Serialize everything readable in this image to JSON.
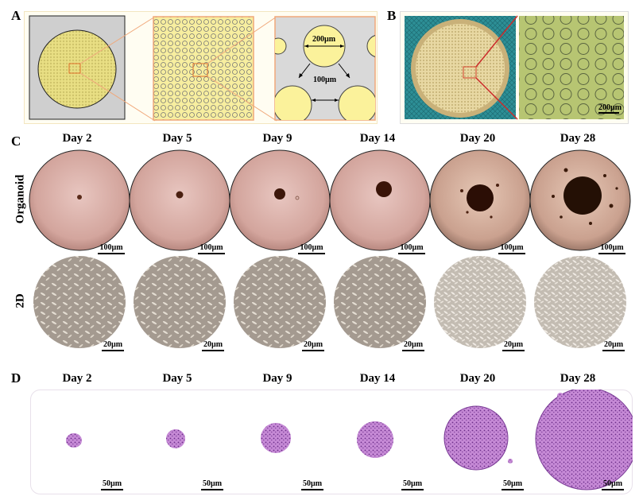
{
  "panels": {
    "a": "A",
    "b": "B",
    "c": "C",
    "d": "D"
  },
  "panel_a": {
    "diameter_label": "200µm",
    "spacing_label": "100µm"
  },
  "panel_b": {
    "scale_label": "200µm"
  },
  "days": [
    "Day 2",
    "Day 5",
    "Day 9",
    "Day 14",
    "Day 20",
    "Day 28"
  ],
  "row_labels": {
    "organoid": "Organoid",
    "two_d": "2D"
  },
  "scales": {
    "organoid": "100µm",
    "two_d": "20µm",
    "histology": "50µm"
  },
  "colors": {
    "well_yellow": "#f7ee9f",
    "microscope_pink": "#d7a9a2",
    "he_purple": "#9b4fb5",
    "bracket_orange": "#f0a87a",
    "zoom_red": "#cc2b2b"
  }
}
